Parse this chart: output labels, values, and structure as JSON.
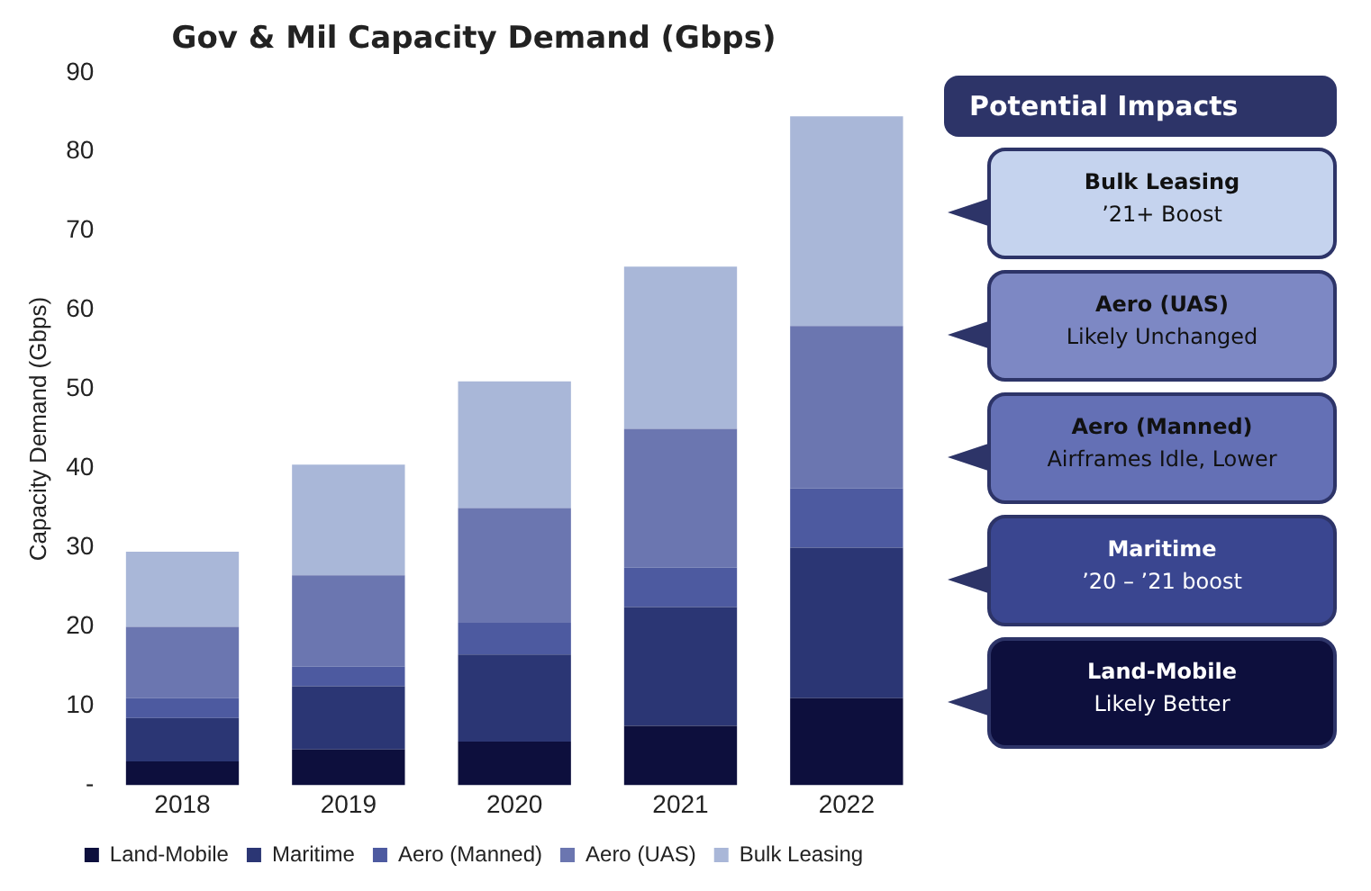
{
  "chart_data": {
    "type": "bar",
    "title": "Gov & Mil Capacity Demand (Gbps)",
    "ylabel": "Capacity Demand (Gbps)",
    "categories": [
      "2018",
      "2019",
      "2020",
      "2021",
      "2022"
    ],
    "stacked": true,
    "series": [
      {
        "name": "Land-Mobile",
        "color": "#0d0f3d",
        "values": [
          3,
          4.5,
          5.5,
          7.5,
          11
        ]
      },
      {
        "name": "Maritime",
        "color": "#2b3674",
        "values": [
          5.5,
          8,
          11,
          15,
          19
        ]
      },
      {
        "name": "Aero (Manned)",
        "color": "#4d5aa0",
        "values": [
          2.5,
          2.5,
          4,
          5,
          7.5
        ]
      },
      {
        "name": "Aero (UAS)",
        "color": "#6b76b0",
        "values": [
          9,
          11.5,
          14.5,
          17.5,
          20.5
        ]
      },
      {
        "name": "Bulk Leasing",
        "color": "#a9b7d8",
        "values": [
          9.5,
          14,
          16,
          20.5,
          26.5
        ]
      }
    ],
    "ylim": [
      0,
      90
    ],
    "yticks": [
      {
        "value": 0,
        "label": "-"
      },
      10,
      20,
      30,
      40,
      50,
      60,
      70,
      80,
      90
    ],
    "grid": false,
    "legend": "bottom",
    "annotations": [
      "Potential Impacts",
      "Bulk Leasing\n’21+ Boost",
      "Aero (UAS)\nLikely Unchanged",
      "Aero (Manned)\nAirframes Idle, Lower",
      "Maritime\n’20 – ’21 boost",
      "Land-Mobile\nLikely Better"
    ]
  }
}
